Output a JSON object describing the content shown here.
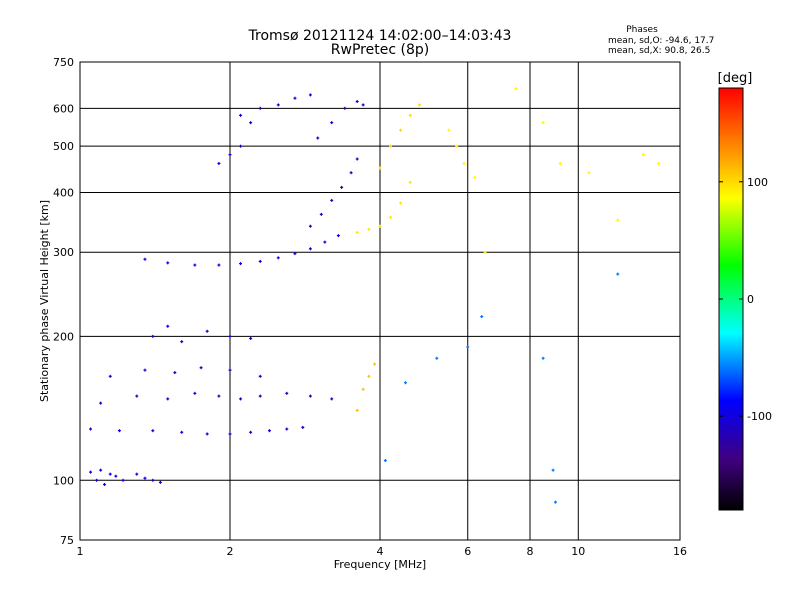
{
  "chart_data": {
    "type": "scatter",
    "title": "Tromsø 20121124 14:02:00–14:03:43",
    "subtitle": "RwPretec (8p)",
    "xlabel": "Frequency [MHz]",
    "ylabel": "Stationary phase Virtual Height [km]",
    "x_scale": "log2",
    "y_scale": "log",
    "xlim": [
      1,
      16
    ],
    "ylim": [
      75,
      750
    ],
    "x_ticks": [
      1,
      2,
      4,
      6,
      8,
      10,
      16
    ],
    "x_tick_labels": [
      "1",
      "2",
      "4",
      "6",
      "8",
      "10",
      "16"
    ],
    "y_ticks": [
      75,
      100,
      200,
      300,
      400,
      500,
      600,
      750
    ],
    "y_tick_labels": [
      "75",
      "100",
      "200",
      "300",
      "400",
      "500",
      "600",
      "750"
    ],
    "grid_x": [
      2,
      4,
      6,
      8,
      10
    ],
    "grid_y": [
      100,
      200,
      300,
      400,
      500,
      600
    ],
    "stats": {
      "heading": "Phases",
      "line1": "mean, sd,O: -94.6, 17.7",
      "line2": "mean, sd,X:  90.8, 26.5"
    },
    "colorbar": {
      "label": "[deg]",
      "range": [
        -180,
        180
      ],
      "ticks": [
        100,
        0,
        -100
      ],
      "tick_labels": [
        "100",
        "0",
        "-100"
      ]
    },
    "series": [
      {
        "x": [
          1.05,
          1.08,
          1.12,
          1.18,
          1.22,
          1.3,
          1.35,
          1.4,
          1.45,
          1.1,
          1.15
        ],
        "y": [
          104,
          100,
          98,
          102,
          100,
          103,
          101,
          100,
          99,
          105,
          103
        ],
        "phase": -95
      },
      {
        "x": [
          1.05,
          1.2,
          1.4,
          1.6,
          1.8,
          2.0,
          2.2,
          2.4,
          2.6,
          2.8
        ],
        "y": [
          128,
          127,
          127,
          126,
          125,
          125,
          126,
          127,
          128,
          129
        ],
        "phase": -100
      },
      {
        "x": [
          1.1,
          1.3,
          1.5,
          1.7,
          1.9,
          2.1,
          2.3,
          2.6,
          2.9,
          3.2
        ],
        "y": [
          145,
          150,
          148,
          152,
          150,
          148,
          150,
          152,
          150,
          148
        ],
        "phase": -110
      },
      {
        "x": [
          1.15,
          1.35,
          1.55,
          1.75,
          2.0,
          2.3
        ],
        "y": [
          165,
          170,
          168,
          172,
          170,
          165
        ],
        "phase": -105
      },
      {
        "x": [
          1.35,
          1.5,
          1.7,
          1.9,
          2.1,
          2.3,
          2.5,
          2.7,
          2.9,
          3.1,
          3.3
        ],
        "y": [
          290,
          285,
          282,
          282,
          284,
          287,
          292,
          298,
          305,
          315,
          325
        ],
        "phase": -100
      },
      {
        "x": [
          2.9,
          3.05,
          3.2,
          3.35,
          3.5,
          3.6
        ],
        "y": [
          340,
          360,
          385,
          410,
          440,
          470
        ],
        "phase": -120
      },
      {
        "x": [
          3.0,
          3.2,
          3.4,
          3.6,
          3.7
        ],
        "y": [
          520,
          560,
          600,
          620,
          610
        ],
        "phase": -110
      },
      {
        "x": [
          1.9,
          2.0,
          2.1,
          2.2
        ],
        "y": [
          460,
          480,
          500,
          560
        ],
        "phase": -95
      },
      {
        "x": [
          2.1,
          2.3,
          2.5,
          2.7,
          2.9
        ],
        "y": [
          580,
          600,
          610,
          630,
          640
        ],
        "phase": -100
      },
      {
        "x": [
          1.4,
          1.5,
          1.6,
          1.8,
          2.0,
          2.2
        ],
        "y": [
          200,
          210,
          195,
          205,
          200,
          198
        ],
        "phase": -100
      },
      {
        "x": [
          3.6,
          3.8,
          4.0,
          4.2,
          4.4,
          4.6
        ],
        "y": [
          330,
          335,
          340,
          355,
          380,
          420
        ],
        "phase": 95
      },
      {
        "x": [
          4.0,
          4.2,
          4.4,
          4.6,
          4.8
        ],
        "y": [
          450,
          500,
          540,
          580,
          610
        ],
        "phase": 100
      },
      {
        "x": [
          3.6,
          3.7,
          3.8,
          3.9
        ],
        "y": [
          140,
          155,
          165,
          175
        ],
        "phase": 110
      },
      {
        "x": [
          5.5,
          5.7,
          5.9,
          6.2,
          6.5,
          7.5,
          8.5,
          9.2,
          10.5,
          12.0,
          13.5,
          14.5
        ],
        "y": [
          540,
          500,
          460,
          430,
          300,
          660,
          560,
          460,
          440,
          350,
          480,
          460
        ],
        "phase": 90
      },
      {
        "x": [
          4.1,
          4.5,
          5.2,
          6.0,
          6.4,
          8.5,
          8.9,
          9.0,
          12.0
        ],
        "y": [
          110,
          160,
          180,
          190,
          220,
          180,
          105,
          90,
          270
        ],
        "phase": -60
      }
    ]
  }
}
